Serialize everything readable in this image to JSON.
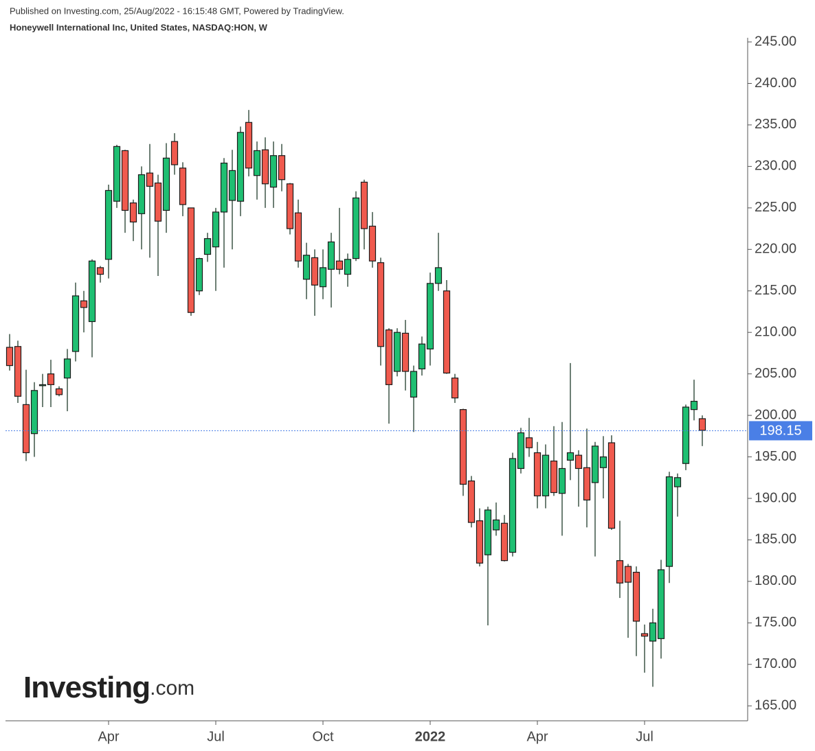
{
  "chart_data": {
    "type": "candlestick",
    "title": "Published on Investing.com, 25/Aug/2022 - 16:15:48 GMT, Powered by TradingView.",
    "subtitle": "Honeywell International Inc, United States, NASDAQ:HON, W",
    "logo": {
      "name": "Investing",
      "suffix": ".com"
    },
    "categories": [
      null,
      null,
      null,
      null,
      null,
      null,
      null,
      null,
      null,
      null,
      null,
      null,
      "Apr",
      null,
      null,
      null,
      null,
      null,
      null,
      null,
      null,
      null,
      null,
      null,
      null,
      "Jul",
      null,
      null,
      null,
      null,
      null,
      null,
      null,
      null,
      null,
      null,
      null,
      null,
      "Oct",
      null,
      null,
      null,
      null,
      null,
      null,
      null,
      null,
      null,
      null,
      null,
      null,
      "2022",
      null,
      null,
      null,
      null,
      null,
      null,
      null,
      null,
      null,
      null,
      null,
      null,
      "Apr",
      null,
      null,
      null,
      null,
      null,
      null,
      null,
      null,
      null,
      null,
      null,
      null,
      "Jul",
      null,
      null,
      null,
      null,
      null,
      null,
      null
    ],
    "open": [
      208.2,
      208.3,
      201.3,
      197.8,
      203.7,
      205,
      203.2,
      204.5,
      207.7,
      213.8,
      211.3,
      217.8,
      218.8,
      225.8,
      231.9,
      225.6,
      224.3,
      229.2,
      228,
      224.7,
      233,
      229.8,
      225,
      215,
      219.4,
      220.3,
      224.5,
      225.9,
      225.8,
      235.3,
      228.9,
      232,
      227.5,
      231.3,
      227.9,
      224.4,
      216.4,
      219,
      215.5,
      217.6,
      218.6,
      217,
      218.9,
      228.1,
      222.8,
      218.4,
      210.3,
      205.3,
      209.9,
      202.2,
      205.6,
      208,
      215.9,
      215,
      204.5,
      200.7,
      192.1,
      187.3,
      183.2,
      186.2,
      187,
      183.5,
      193.6,
      197.3,
      195.5,
      190.3,
      194.5,
      190.6,
      194.6,
      195.2,
      193.7,
      191.9,
      193.7,
      196.7,
      182.5,
      181.8,
      181.1,
      173.7,
      172.8,
      173.1,
      181.8,
      191.4,
      194.2,
      200.7,
      199.6
    ],
    "high": [
      209.8,
      209,
      205.5,
      204,
      205,
      206.7,
      203.5,
      208,
      216,
      215,
      218.8,
      218,
      227.8,
      232.6,
      232,
      226,
      230,
      232.7,
      229,
      232.8,
      234,
      230.5,
      225,
      219,
      222,
      225,
      231,
      232,
      234.8,
      236.8,
      233,
      233.5,
      233,
      232.7,
      228,
      226,
      220.8,
      220,
      220,
      222,
      225,
      219.5,
      227,
      228.4,
      224.5,
      219,
      210.5,
      210.5,
      211.5,
      206,
      209.5,
      217.2,
      222,
      216.3,
      205,
      200.8,
      192.7,
      188.8,
      189,
      189.5,
      188,
      195.5,
      198.5,
      199.7,
      196.8,
      196.5,
      198.7,
      199.2,
      206.3,
      195.8,
      198.4,
      196.8,
      197.5,
      197.6,
      187.3,
      182.1,
      181.8,
      174.8,
      176.7,
      182.6,
      193.2,
      193,
      201.3,
      204.3,
      200
    ],
    "low": [
      205.4,
      201.5,
      194.5,
      195,
      201,
      201,
      202.3,
      200.5,
      206.5,
      210,
      207,
      216,
      216.5,
      225,
      222,
      221,
      220,
      219,
      216.8,
      222,
      229,
      224,
      212,
      214.5,
      218.5,
      215,
      217.8,
      220,
      224,
      228.8,
      226,
      225,
      225,
      227,
      221.8,
      217.8,
      214,
      212,
      214,
      213,
      217,
      215.5,
      218.6,
      220,
      217.8,
      206,
      199,
      204.7,
      203,
      198,
      204.8,
      206,
      215,
      205,
      201.5,
      190.3,
      186.5,
      181.8,
      174.7,
      185.5,
      182.4,
      183,
      193,
      195,
      188.8,
      188.8,
      190.3,
      185.5,
      192.2,
      189,
      186.5,
      183,
      190,
      186.2,
      178,
      173.2,
      171,
      169,
      167.3,
      170.7,
      179.8,
      187.8,
      193.4,
      199.4,
      196.3
    ],
    "close": [
      206,
      202.3,
      195.5,
      203,
      203.7,
      203.7,
      202.5,
      206.8,
      214.4,
      213,
      218.6,
      217,
      227.1,
      232.4,
      224.7,
      223.3,
      229,
      227.6,
      223.4,
      231,
      230.2,
      225.4,
      212.4,
      218.9,
      221.3,
      224.5,
      230.4,
      229.5,
      234.1,
      229.8,
      231.9,
      227.9,
      231.3,
      228.4,
      222.5,
      218.6,
      219.3,
      215.7,
      217.8,
      220.9,
      217.6,
      218.8,
      226.2,
      222.5,
      218.6,
      208.3,
      203.7,
      210,
      205.3,
      205.3,
      208.6,
      215.9,
      217.8,
      205.1,
      202.1,
      191.7,
      187.1,
      182.2,
      188.6,
      187.4,
      182.5,
      194.8,
      197.9,
      196.1,
      190.3,
      195.2,
      190.7,
      193.6,
      195.5,
      193.6,
      189.8,
      196.3,
      195,
      186.4,
      179.8,
      179.9,
      175.2,
      173.4,
      175,
      181.4,
      192.6,
      192.5,
      201,
      201.7,
      198.2
    ],
    "up_color": "#1fbf72",
    "down_color": "#f05a4e",
    "last_price": 198.15,
    "last_price_color": "#4a7fe6",
    "ylim": [
      163.2,
      245.5
    ],
    "yticks": [
      {
        "value": 165,
        "label": "165.00"
      },
      {
        "value": 170,
        "label": "170.00"
      },
      {
        "value": 175,
        "label": "175.00"
      },
      {
        "value": 180,
        "label": "180.00"
      },
      {
        "value": 185,
        "label": "185.00"
      },
      {
        "value": 190,
        "label": "190.00"
      },
      {
        "value": 195,
        "label": "195.00"
      },
      {
        "value": 200,
        "label": "200.00"
      },
      {
        "value": 205,
        "label": "205.00"
      },
      {
        "value": 210,
        "label": "210.00"
      },
      {
        "value": 215,
        "label": "215.00"
      },
      {
        "value": 220,
        "label": "220.00"
      },
      {
        "value": 225,
        "label": "225.00"
      },
      {
        "value": 230,
        "label": "230.00"
      },
      {
        "value": 235,
        "label": "235.00"
      },
      {
        "value": 240,
        "label": "240.00"
      },
      {
        "value": 245,
        "label": "245.00"
      }
    ],
    "grid": false
  }
}
